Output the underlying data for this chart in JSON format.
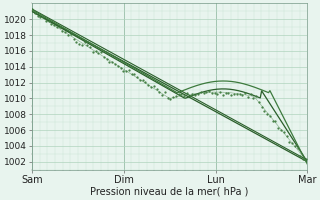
{
  "title": "",
  "xlabel": "Pression niveau de la mer( hPa )",
  "ylabel": "",
  "xlim": [
    0,
    72
  ],
  "ylim": [
    1001,
    1022
  ],
  "yticks": [
    1002,
    1004,
    1006,
    1008,
    1010,
    1012,
    1014,
    1016,
    1018,
    1020
  ],
  "xtick_positions": [
    0,
    24,
    48,
    72
  ],
  "xtick_labels": [
    "Sam",
    "Dim",
    "Lun",
    "Mar"
  ],
  "background_color": "#e8f4ee",
  "grid_color_major": "#b0d4be",
  "grid_color_minor": "#c8e4d2",
  "line_color": "#2a5e2a",
  "line_color_light": "#3d7a3d"
}
